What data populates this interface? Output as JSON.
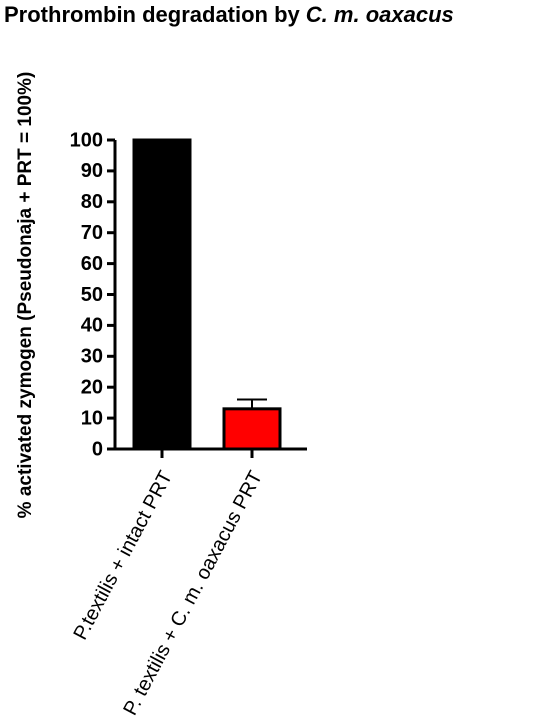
{
  "chart_data": {
    "type": "bar",
    "title": [
      "Prothrombin degradation by",
      "C. m. oaxacus"
    ],
    "y_label": "% activated zymogen (Pseudonaja + PRT = 100%)",
    "categories": [
      "P.textilis + intact PRT",
      "P. textilis + C. m. oaxacus PRT"
    ],
    "values": [
      100,
      13
    ],
    "errors": [
      null,
      3
    ],
    "colors": [
      "#000000",
      "#ff0000"
    ],
    "ylim": [
      0,
      100
    ],
    "yticks": [
      0,
      10,
      20,
      30,
      40,
      50,
      60,
      70,
      80,
      90,
      100
    ]
  }
}
